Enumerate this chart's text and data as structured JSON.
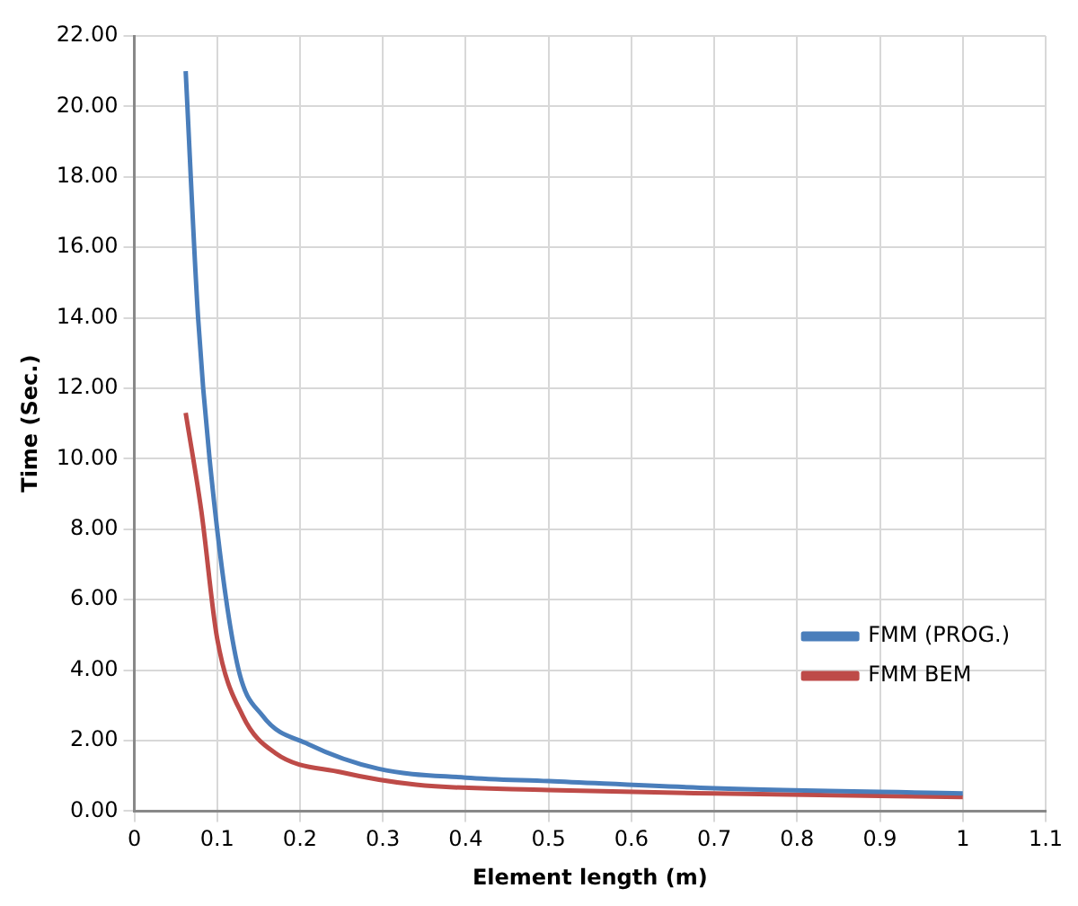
{
  "chart_data": {
    "type": "line",
    "xlabel": "Element length (m)",
    "ylabel": "Time (Sec.)",
    "xlim": [
      0,
      1.1
    ],
    "xticks": [
      {
        "value": 0,
        "label": "0"
      },
      {
        "value": 0.1,
        "label": "0.1"
      },
      {
        "value": 0.2,
        "label": "0.2"
      },
      {
        "value": 0.3,
        "label": "0.3"
      },
      {
        "value": 0.4,
        "label": "0.4"
      },
      {
        "value": 0.5,
        "label": "0.5"
      },
      {
        "value": 0.6,
        "label": "0.6"
      },
      {
        "value": 0.7,
        "label": "0.7"
      },
      {
        "value": 0.8,
        "label": "0.8"
      },
      {
        "value": 0.9,
        "label": "0.9"
      },
      {
        "value": 1,
        "label": "1"
      },
      {
        "value": 1.1,
        "label": "1.1"
      }
    ],
    "ylim": [
      0,
      22
    ],
    "yticks": [
      {
        "value": 0,
        "label": "0.00"
      },
      {
        "value": 2,
        "label": "2.00"
      },
      {
        "value": 4,
        "label": "4.00"
      },
      {
        "value": 6,
        "label": "6.00"
      },
      {
        "value": 8,
        "label": "8.00"
      },
      {
        "value": 10,
        "label": "10.00"
      },
      {
        "value": 12,
        "label": "12.00"
      },
      {
        "value": 14,
        "label": "14.00"
      },
      {
        "value": 16,
        "label": "16.00"
      },
      {
        "value": 18,
        "label": "18.00"
      },
      {
        "value": 20,
        "label": "20.00"
      },
      {
        "value": 22,
        "label": "22.00"
      }
    ],
    "grid": true,
    "legend": "right",
    "marker": "none",
    "line_style": "solid",
    "series": [
      {
        "name": "FMM (PROG.)",
        "color": "#4a7ebb",
        "x": [
          0.062,
          0.077,
          0.093,
          0.124,
          0.155,
          0.21,
          0.295,
          0.4,
          0.5,
          0.7,
          1.0
        ],
        "values": [
          21.0,
          14.0,
          9.5,
          4.2,
          2.7,
          1.9,
          1.2,
          0.95,
          0.85,
          0.65,
          0.5
        ]
      },
      {
        "name": "FMM BEM",
        "color": "#be4b48",
        "x": [
          0.062,
          0.081,
          0.1,
          0.131,
          0.17,
          0.25,
          0.34,
          0.5,
          0.7,
          1.0
        ],
        "values": [
          11.3,
          8.5,
          4.9,
          2.7,
          1.65,
          1.1,
          0.75,
          0.6,
          0.5,
          0.4
        ]
      }
    ]
  }
}
